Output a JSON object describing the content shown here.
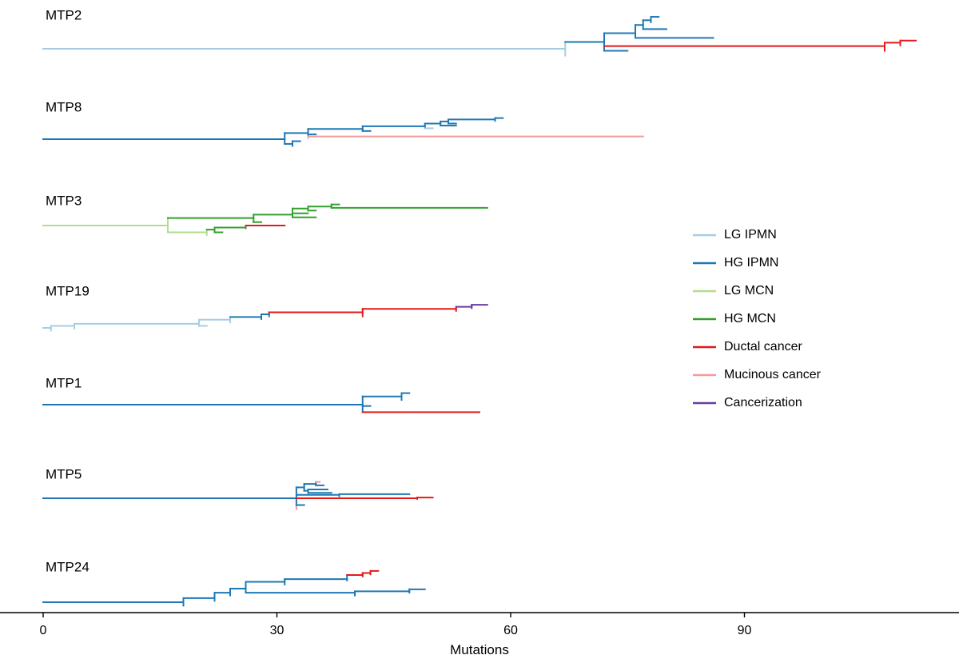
{
  "colors": {
    "LG IPMN": "#a6cee3",
    "HG IPMN": "#1f78b4",
    "LG MCN": "#b2df8a",
    "HG MCN": "#33a02c",
    "Ductal cancer": "#e31a1c",
    "Mucinous cancer": "#f4999a",
    "Cancerization": "#6a3d9a"
  },
  "legend": {
    "placement": "right",
    "entries": [
      "LG IPMN",
      "HG IPMN",
      "LG MCN",
      "HG MCN",
      "Ductal cancer",
      "Mucinous cancer",
      "Cancerization"
    ]
  },
  "axis": {
    "label": "Mutations",
    "ticks": [
      0,
      30,
      60,
      90
    ],
    "tick_labels": [
      "0",
      "30",
      "60",
      "90"
    ],
    "range": [
      -5,
      117
    ]
  },
  "trees": [
    {
      "label": "MTP2",
      "segments": [
        {
          "x1": 0,
          "x2": 67,
          "yi": 0,
          "t": "LG IPMN"
        },
        {
          "x1": 67,
          "x2": 67,
          "yi": -1,
          "yj": 1,
          "t": "LG IPMN"
        },
        {
          "x1": 67,
          "x2": 72,
          "yi": -1,
          "t": "HG IPMN"
        },
        {
          "x1": 72,
          "x2": 72,
          "yi": -2.3,
          "yj": 0.3,
          "t": "HG IPMN"
        },
        {
          "x1": 72,
          "x2": 76,
          "yi": -2.3,
          "t": "HG IPMN"
        },
        {
          "x1": 76,
          "x2": 76,
          "yi": -3.5,
          "yj": -1.6,
          "t": "HG IPMN"
        },
        {
          "x1": 76,
          "x2": 77,
          "yi": -3.5,
          "t": "HG IPMN"
        },
        {
          "x1": 77,
          "x2": 77,
          "yi": -4.2,
          "yj": -2.9,
          "t": "HG IPMN"
        },
        {
          "x1": 77,
          "x2": 78,
          "yi": -4.2,
          "t": "HG IPMN"
        },
        {
          "x1": 78,
          "x2": 78,
          "yi": -4.7,
          "yj": -3.9,
          "t": "HG IPMN"
        },
        {
          "x1": 78,
          "x2": 79,
          "yi": -4.7,
          "t": "HG IPMN"
        },
        {
          "x1": 77,
          "x2": 80,
          "yi": -2.9,
          "t": "HG IPMN"
        },
        {
          "x1": 76,
          "x2": 86,
          "yi": -1.6,
          "t": "HG IPMN"
        },
        {
          "x1": 72,
          "x2": 108,
          "yi": -0.4,
          "t": "Ductal cancer"
        },
        {
          "x1": 108,
          "x2": 108,
          "yi": -0.9,
          "yj": 0.3,
          "t": "Ductal cancer"
        },
        {
          "x1": 108,
          "x2": 110,
          "yi": -0.9,
          "t": "Ductal cancer"
        },
        {
          "x1": 110,
          "x2": 110,
          "yi": -1.2,
          "yj": -0.5,
          "t": "Ductal cancer"
        },
        {
          "x1": 110,
          "x2": 112,
          "yi": -1.2,
          "t": "Ductal cancer"
        },
        {
          "x1": 72,
          "x2": 75,
          "yi": 0.3,
          "t": "HG IPMN"
        }
      ]
    },
    {
      "label": "MTP8",
      "segments": [
        {
          "x1": 0,
          "x2": 31,
          "yi": 0,
          "t": "HG IPMN"
        },
        {
          "x1": 31,
          "x2": 31,
          "yi": -0.9,
          "yj": 0.7,
          "t": "HG IPMN"
        },
        {
          "x1": 31,
          "x2": 34,
          "yi": -0.9,
          "t": "HG IPMN"
        },
        {
          "x1": 34,
          "x2": 34,
          "yi": -1.5,
          "yj": -0.4,
          "t": "HG IPMN"
        },
        {
          "x1": 34,
          "x2": 41,
          "yi": -1.5,
          "t": "HG IPMN"
        },
        {
          "x1": 41,
          "x2": 41,
          "yi": -1.9,
          "yj": -1.2,
          "t": "HG IPMN"
        },
        {
          "x1": 41,
          "x2": 49,
          "yi": -1.9,
          "t": "HG IPMN"
        },
        {
          "x1": 49,
          "x2": 49,
          "yi": -2.3,
          "yj": -1.6,
          "t": "HG IPMN"
        },
        {
          "x1": 49,
          "x2": 51,
          "yi": -2.3,
          "t": "HG IPMN"
        },
        {
          "x1": 51,
          "x2": 51,
          "yi": -2.6,
          "yj": -2.0,
          "t": "HG IPMN"
        },
        {
          "x1": 51,
          "x2": 52,
          "yi": -2.6,
          "t": "HG IPMN"
        },
        {
          "x1": 52,
          "x2": 52,
          "yi": -2.9,
          "yj": -2.3,
          "t": "HG IPMN"
        },
        {
          "x1": 52,
          "x2": 58,
          "yi": -2.9,
          "t": "HG IPMN"
        },
        {
          "x1": 58,
          "x2": 58,
          "yi": -3.1,
          "yj": -2.7,
          "t": "HG IPMN"
        },
        {
          "x1": 58,
          "x2": 59,
          "yi": -3.1,
          "t": "HG IPMN"
        },
        {
          "x1": 52,
          "x2": 53,
          "yi": -2.3,
          "t": "HG IPMN"
        },
        {
          "x1": 51,
          "x2": 53,
          "yi": -2.0,
          "t": "HG IPMN"
        },
        {
          "x1": 49,
          "x2": 50,
          "yi": -1.6,
          "t": "LG IPMN"
        },
        {
          "x1": 41,
          "x2": 42,
          "yi": -1.2,
          "t": "HG IPMN"
        },
        {
          "x1": 34,
          "x2": 35,
          "yi": -0.7,
          "t": "HG IPMN"
        },
        {
          "x1": 34,
          "x2": 34,
          "yi": -0.4,
          "yj": -0.1,
          "t": "LG IPMN"
        },
        {
          "x1": 34,
          "x2": 77,
          "yi": -0.4,
          "t": "Mucinous cancer"
        },
        {
          "x1": 31,
          "x2": 32,
          "yi": 0.7,
          "t": "HG IPMN"
        },
        {
          "x1": 32,
          "x2": 32,
          "yi": 0.3,
          "yj": 1.0,
          "t": "HG IPMN"
        },
        {
          "x1": 32,
          "x2": 33,
          "yi": 0.3,
          "t": "HG IPMN"
        }
      ]
    },
    {
      "label": "MTP3",
      "segments": [
        {
          "x1": 0,
          "x2": 16,
          "yi": 0,
          "t": "LG MCN"
        },
        {
          "x1": 16,
          "x2": 16,
          "yi": -1.1,
          "yj": 1.0,
          "t": "LG MCN"
        },
        {
          "x1": 16,
          "x2": 27,
          "yi": -1.1,
          "t": "HG MCN"
        },
        {
          "x1": 27,
          "x2": 27,
          "yi": -1.6,
          "yj": -0.5,
          "t": "HG MCN"
        },
        {
          "x1": 27,
          "x2": 32,
          "yi": -1.6,
          "t": "HG MCN"
        },
        {
          "x1": 32,
          "x2": 32,
          "yi": -2.5,
          "yj": -1.2,
          "t": "HG MCN"
        },
        {
          "x1": 32,
          "x2": 34,
          "yi": -2.5,
          "t": "HG MCN"
        },
        {
          "x1": 34,
          "x2": 34,
          "yi": -2.8,
          "yj": -2.2,
          "t": "HG MCN"
        },
        {
          "x1": 34,
          "x2": 37,
          "yi": -2.8,
          "t": "HG MCN"
        },
        {
          "x1": 37,
          "x2": 37,
          "yi": -3.1,
          "yj": -2.6,
          "t": "HG MCN"
        },
        {
          "x1": 37,
          "x2": 38,
          "yi": -3.1,
          "t": "HG MCN"
        },
        {
          "x1": 37,
          "x2": 57,
          "yi": -2.6,
          "t": "HG MCN"
        },
        {
          "x1": 34,
          "x2": 35,
          "yi": -2.2,
          "t": "HG MCN"
        },
        {
          "x1": 32,
          "x2": 34,
          "yi": -1.8,
          "t": "HG MCN"
        },
        {
          "x1": 32,
          "x2": 35,
          "yi": -1.2,
          "t": "HG MCN"
        },
        {
          "x1": 27,
          "x2": 28,
          "yi": -0.5,
          "t": "HG MCN"
        },
        {
          "x1": 16,
          "x2": 21,
          "yi": 1.0,
          "t": "LG MCN"
        },
        {
          "x1": 21,
          "x2": 21,
          "yi": 0.6,
          "yj": 1.4,
          "t": "LG MCN"
        },
        {
          "x1": 21,
          "x2": 22,
          "yi": 0.6,
          "t": "HG MCN"
        },
        {
          "x1": 22,
          "x2": 22,
          "yi": 0.3,
          "yj": 1.0,
          "t": "HG MCN"
        },
        {
          "x1": 22,
          "x2": 26,
          "yi": 0.3,
          "t": "HG MCN"
        },
        {
          "x1": 26,
          "x2": 26,
          "yi": 0.0,
          "yj": 0.4,
          "t": "HG MCN"
        },
        {
          "x1": 26,
          "x2": 31,
          "yi": 0.0,
          "t": "Ductal cancer"
        },
        {
          "x1": 22,
          "x2": 23,
          "yi": 1.0,
          "t": "HG MCN"
        }
      ]
    },
    {
      "label": "MTP19",
      "segments": [
        {
          "x1": 0,
          "x2": 1,
          "yi": 0,
          "t": "LG IPMN"
        },
        {
          "x1": 1,
          "x2": 1,
          "yi": -0.3,
          "yj": 0.4,
          "t": "LG IPMN"
        },
        {
          "x1": 1,
          "x2": 4,
          "yi": -0.3,
          "t": "LG IPMN"
        },
        {
          "x1": 4,
          "x2": 4,
          "yi": -0.6,
          "yj": 0.1,
          "t": "LG IPMN"
        },
        {
          "x1": 4,
          "x2": 20,
          "yi": -0.6,
          "t": "LG IPMN"
        },
        {
          "x1": 20,
          "x2": 20,
          "yi": -1.2,
          "yj": -0.3,
          "t": "LG IPMN"
        },
        {
          "x1": 20,
          "x2": 24,
          "yi": -1.2,
          "t": "LG IPMN"
        },
        {
          "x1": 24,
          "x2": 24,
          "yi": -1.6,
          "yj": -0.8,
          "t": "LG IPMN"
        },
        {
          "x1": 24,
          "x2": 28,
          "yi": -1.6,
          "t": "HG IPMN"
        },
        {
          "x1": 28,
          "x2": 28,
          "yi": -2.0,
          "yj": -1.3,
          "t": "HG IPMN"
        },
        {
          "x1": 28,
          "x2": 29,
          "yi": -2.0,
          "t": "HG IPMN"
        },
        {
          "x1": 29,
          "x2": 29,
          "yi": -2.3,
          "yj": -1.7,
          "t": "HG IPMN"
        },
        {
          "x1": 29,
          "x2": 41,
          "yi": -2.3,
          "t": "Ductal cancer"
        },
        {
          "x1": 41,
          "x2": 41,
          "yi": -2.8,
          "yj": -1.7,
          "t": "Ductal cancer"
        },
        {
          "x1": 41,
          "x2": 53,
          "yi": -2.8,
          "t": "Ductal cancer"
        },
        {
          "x1": 53,
          "x2": 53,
          "yi": -3.1,
          "yj": -2.5,
          "t": "Ductal cancer"
        },
        {
          "x1": 53,
          "x2": 55,
          "yi": -3.1,
          "t": "Cancerization"
        },
        {
          "x1": 55,
          "x2": 55,
          "yi": -3.4,
          "yj": -2.9,
          "t": "Cancerization"
        },
        {
          "x1": 55,
          "x2": 57,
          "yi": -3.4,
          "t": "Cancerization"
        },
        {
          "x1": 20,
          "x2": 21,
          "yi": -0.3,
          "t": "LG IPMN"
        }
      ]
    },
    {
      "label": "MTP1",
      "segments": [
        {
          "x1": 0,
          "x2": 41,
          "yi": 0,
          "t": "HG IPMN"
        },
        {
          "x1": 41,
          "x2": 41,
          "yi": -1.2,
          "yj": 1.1,
          "t": "HG IPMN"
        },
        {
          "x1": 41,
          "x2": 46,
          "yi": -1.2,
          "t": "HG IPMN"
        },
        {
          "x1": 46,
          "x2": 46,
          "yi": -1.7,
          "yj": -0.7,
          "t": "HG IPMN"
        },
        {
          "x1": 46,
          "x2": 47,
          "yi": -1.7,
          "t": "HG IPMN"
        },
        {
          "x1": 41,
          "x2": 42,
          "yi": 0.2,
          "t": "HG IPMN"
        },
        {
          "x1": 41,
          "x2": 56,
          "yi": 1.1,
          "t": "Ductal cancer"
        }
      ]
    },
    {
      "label": "MTP5",
      "segments": [
        {
          "x1": 0,
          "x2": 32.5,
          "yi": 0,
          "t": "HG IPMN"
        },
        {
          "x1": 32.5,
          "x2": 32.5,
          "yi": -1.6,
          "yj": 1.0,
          "t": "HG IPMN"
        },
        {
          "x1": 32.5,
          "x2": 32.5,
          "yi": 1.0,
          "yj": 1.6,
          "t": "Mucinous cancer"
        },
        {
          "x1": 32.5,
          "x2": 33.5,
          "yi": -1.6,
          "t": "HG IPMN"
        },
        {
          "x1": 33.5,
          "x2": 33.5,
          "yi": -2.1,
          "yj": -1.1,
          "t": "HG IPMN"
        },
        {
          "x1": 33.5,
          "x2": 35,
          "yi": -2.1,
          "t": "HG IPMN"
        },
        {
          "x1": 35,
          "x2": 35,
          "yi": -2.4,
          "yj": -1.9,
          "t": "HG IPMN"
        },
        {
          "x1": 35,
          "x2": 35.5,
          "yi": -2.4,
          "t": "Mucinous cancer"
        },
        {
          "x1": 35,
          "x2": 36,
          "yi": -1.9,
          "t": "HG IPMN"
        },
        {
          "x1": 33.5,
          "x2": 34,
          "yi": -1.1,
          "t": "HG IPMN"
        },
        {
          "x1": 34,
          "x2": 34,
          "yi": -1.3,
          "yj": -0.8,
          "t": "HG IPMN"
        },
        {
          "x1": 34,
          "x2": 36.5,
          "yi": -1.3,
          "t": "HG IPMN"
        },
        {
          "x1": 34,
          "x2": 37,
          "yi": -0.8,
          "t": "HG IPMN"
        },
        {
          "x1": 32.5,
          "x2": 38,
          "yi": -0.5,
          "t": "HG IPMN"
        },
        {
          "x1": 38,
          "x2": 38,
          "yi": -0.6,
          "yj": -0.3,
          "t": "HG IPMN"
        },
        {
          "x1": 38,
          "x2": 47,
          "yi": -0.6,
          "t": "HG IPMN"
        },
        {
          "x1": 32.5,
          "x2": 48,
          "yi": 0.0,
          "t": "Ductal cancer"
        },
        {
          "x1": 48,
          "x2": 48,
          "yi": -0.1,
          "yj": 0.1,
          "t": "Ductal cancer"
        },
        {
          "x1": 48,
          "x2": 50,
          "yi": -0.1,
          "t": "Ductal cancer"
        },
        {
          "x1": 32.5,
          "x2": 33.5,
          "yi": 1.0,
          "t": "HG IPMN"
        }
      ]
    },
    {
      "label": "MTP24",
      "segments": [
        {
          "x1": 0,
          "x2": 18,
          "yi": 0,
          "t": "HG IPMN"
        },
        {
          "x1": 18,
          "x2": 18,
          "yi": -0.6,
          "yj": 0.5,
          "t": "HG IPMN"
        },
        {
          "x1": 18,
          "x2": 22,
          "yi": -0.6,
          "t": "HG IPMN"
        },
        {
          "x1": 22,
          "x2": 22,
          "yi": -1.4,
          "yj": -0.2,
          "t": "HG IPMN"
        },
        {
          "x1": 22,
          "x2": 24,
          "yi": -1.4,
          "t": "HG IPMN"
        },
        {
          "x1": 24,
          "x2": 24,
          "yi": -2.0,
          "yj": -1.0,
          "t": "HG IPMN"
        },
        {
          "x1": 24,
          "x2": 26,
          "yi": -2.0,
          "t": "HG IPMN"
        },
        {
          "x1": 26,
          "x2": 26,
          "yi": -3.0,
          "yj": -1.4,
          "t": "HG IPMN"
        },
        {
          "x1": 26,
          "x2": 31,
          "yi": -3.0,
          "t": "HG IPMN"
        },
        {
          "x1": 31,
          "x2": 31,
          "yi": -3.4,
          "yj": -2.6,
          "t": "HG IPMN"
        },
        {
          "x1": 31,
          "x2": 39,
          "yi": -3.4,
          "t": "HG IPMN"
        },
        {
          "x1": 39,
          "x2": 39,
          "yi": -4.0,
          "yj": -3.2,
          "t": "HG IPMN"
        },
        {
          "x1": 39,
          "x2": 41,
          "yi": -4.0,
          "t": "Ductal cancer"
        },
        {
          "x1": 41,
          "x2": 41,
          "yi": -4.3,
          "yj": -3.8,
          "t": "Ductal cancer"
        },
        {
          "x1": 41,
          "x2": 42,
          "yi": -4.3,
          "t": "Ductal cancer"
        },
        {
          "x1": 42,
          "x2": 42,
          "yi": -4.6,
          "yj": -4.1,
          "t": "Ductal cancer"
        },
        {
          "x1": 42,
          "x2": 43,
          "yi": -4.6,
          "t": "Ductal cancer"
        },
        {
          "x1": 26,
          "x2": 40,
          "yi": -1.4,
          "t": "HG IPMN"
        },
        {
          "x1": 40,
          "x2": 40,
          "yi": -1.6,
          "yj": -1.0,
          "t": "HG IPMN"
        },
        {
          "x1": 40,
          "x2": 47,
          "yi": -1.6,
          "t": "HG IPMN"
        },
        {
          "x1": 47,
          "x2": 47,
          "yi": -1.9,
          "yj": -1.4,
          "t": "HG IPMN"
        },
        {
          "x1": 47,
          "x2": 49,
          "yi": -1.9,
          "t": "HG IPMN"
        }
      ]
    }
  ]
}
